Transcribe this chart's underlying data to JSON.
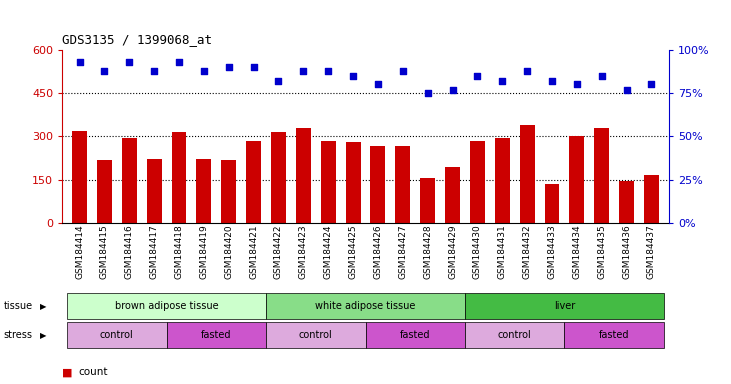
{
  "title": "GDS3135 / 1399068_at",
  "samples": [
    "GSM184414",
    "GSM184415",
    "GSM184416",
    "GSM184417",
    "GSM184418",
    "GSM184419",
    "GSM184420",
    "GSM184421",
    "GSM184422",
    "GSM184423",
    "GSM184424",
    "GSM184425",
    "GSM184426",
    "GSM184427",
    "GSM184428",
    "GSM184429",
    "GSM184430",
    "GSM184431",
    "GSM184432",
    "GSM184433",
    "GSM184434",
    "GSM184435",
    "GSM184436",
    "GSM184437"
  ],
  "bar_values": [
    320,
    218,
    293,
    220,
    315,
    222,
    218,
    285,
    315,
    330,
    285,
    280,
    268,
    265,
    155,
    195,
    285,
    295,
    340,
    135,
    300,
    330,
    145,
    165
  ],
  "dot_values": [
    93,
    88,
    93,
    88,
    93,
    88,
    90,
    90,
    82,
    88,
    88,
    85,
    80,
    88,
    75,
    77,
    85,
    82,
    88,
    82,
    80,
    85,
    77,
    80
  ],
  "bar_color": "#cc0000",
  "dot_color": "#0000cc",
  "ylim_left": [
    0,
    600
  ],
  "ylim_right": [
    0,
    100
  ],
  "yticks_left": [
    0,
    150,
    300,
    450,
    600
  ],
  "yticks_right": [
    0,
    25,
    50,
    75,
    100
  ],
  "ytick_labels_left": [
    "0",
    "150",
    "300",
    "450",
    "600"
  ],
  "ytick_labels_right": [
    "0%",
    "25%",
    "50%",
    "75%",
    "100%"
  ],
  "hline_values": [
    150,
    300,
    450
  ],
  "tissues": [
    {
      "label": "brown adipose tissue",
      "start": 0,
      "end": 7,
      "color": "#ccffcc"
    },
    {
      "label": "white adipose tissue",
      "start": 8,
      "end": 15,
      "color": "#88dd88"
    },
    {
      "label": "liver",
      "start": 16,
      "end": 23,
      "color": "#44bb44"
    }
  ],
  "stresses": [
    {
      "label": "control",
      "start": 0,
      "end": 3,
      "color": "#ddaadd"
    },
    {
      "label": "fasted",
      "start": 4,
      "end": 7,
      "color": "#cc55cc"
    },
    {
      "label": "control",
      "start": 8,
      "end": 11,
      "color": "#ddaadd"
    },
    {
      "label": "fasted",
      "start": 12,
      "end": 15,
      "color": "#cc55cc"
    },
    {
      "label": "control",
      "start": 16,
      "end": 19,
      "color": "#ddaadd"
    },
    {
      "label": "fasted",
      "start": 20,
      "end": 23,
      "color": "#cc55cc"
    }
  ],
  "legend_count_color": "#cc0000",
  "legend_dot_color": "#0000cc",
  "background_color": "#ffffff"
}
